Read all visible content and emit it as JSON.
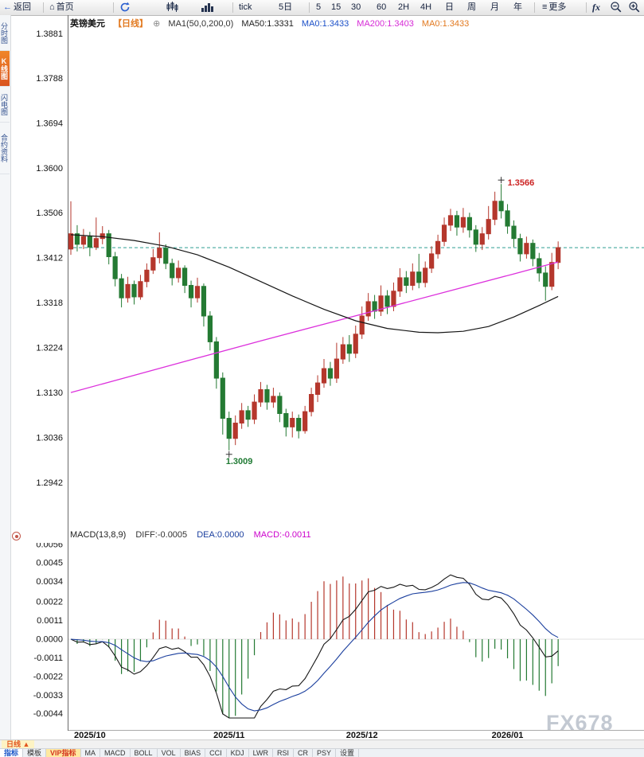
{
  "toolbar": {
    "back": "返回",
    "home": "首页",
    "tick": "tick",
    "five_day": "5日",
    "p5": "5",
    "p15": "15",
    "p30": "30",
    "p60": "60",
    "p2h": "2H",
    "p4h": "4H",
    "pday": "日",
    "pweek": "周",
    "pmonth": "月",
    "pyear": "年",
    "more": "更多",
    "fx": "fx"
  },
  "icons": {
    "back_arrow": "←",
    "home": "⌂",
    "hamburger": "≡",
    "add_circle": "⊕"
  },
  "sidebar": {
    "items": [
      {
        "label": "分时图"
      },
      {
        "label": "K线图"
      },
      {
        "label": "闪电图"
      },
      {
        "label": "合约资料"
      }
    ]
  },
  "price_header": {
    "symbol": "英镑美元",
    "period": "【日线】",
    "ma_params": "MA1(50,0,200,0)",
    "ma50": "MA50:1.3331",
    "ma0_blue": "MA0:1.3433",
    "ma200": "MA200:1.3403",
    "ma0_orange": "MA0:1.3433"
  },
  "macd_header": {
    "params": "MACD(13,8,9)",
    "diff": "DIFF:-0.0005",
    "dea": "DEA:0.0000",
    "macd": "MACD:-0.0011"
  },
  "bottom": {
    "period_tab": "日线 ▲",
    "watermark": "FX678",
    "tabs": [
      {
        "label": "指标"
      },
      {
        "label": "模板"
      },
      {
        "label": "VIP指标"
      },
      {
        "label": "MA"
      },
      {
        "label": "MACD"
      },
      {
        "label": "BOLL"
      },
      {
        "label": "VOL"
      },
      {
        "label": "BIAS"
      },
      {
        "label": "CCI"
      },
      {
        "label": "KDJ"
      },
      {
        "label": "LWR"
      },
      {
        "label": "RSI"
      },
      {
        "label": "CR"
      },
      {
        "label": "PSY"
      },
      {
        "label": "设置"
      }
    ]
  },
  "chart_data": {
    "type": "candlestick",
    "title": "英镑美元 日线",
    "indicator_panel": "MACD",
    "price_axis": {
      "top": 1.3881,
      "bottom": 1.2942,
      "ticks": [
        1.3881,
        1.3788,
        1.3694,
        1.36,
        1.3506,
        1.3412,
        1.3318,
        1.3224,
        1.313,
        1.3036,
        1.2942
      ]
    },
    "last_price_line": 1.3433,
    "x_ticks": [
      {
        "index": 3,
        "label": "2025/10"
      },
      {
        "index": 25,
        "label": "2025/11"
      },
      {
        "index": 46,
        "label": "2025/12"
      },
      {
        "index": 69,
        "label": "2026/01"
      }
    ],
    "candles": [
      [
        1.343,
        1.353,
        1.3418,
        1.3462
      ],
      [
        1.3462,
        1.348,
        1.3425,
        1.344
      ],
      [
        1.344,
        1.3472,
        1.343,
        1.3456
      ],
      [
        1.3456,
        1.3466,
        1.3415,
        1.3434
      ],
      [
        1.3434,
        1.3496,
        1.3428,
        1.3452
      ],
      [
        1.3452,
        1.3478,
        1.344,
        1.3462
      ],
      [
        1.3462,
        1.347,
        1.3398,
        1.3414
      ],
      [
        1.3414,
        1.3424,
        1.3352,
        1.3368
      ],
      [
        1.3368,
        1.3378,
        1.3308,
        1.3328
      ],
      [
        1.3328,
        1.3372,
        1.3318,
        1.3356
      ],
      [
        1.3356,
        1.3364,
        1.3314,
        1.333
      ],
      [
        1.333,
        1.3376,
        1.3324,
        1.3362
      ],
      [
        1.3362,
        1.34,
        1.335,
        1.3386
      ],
      [
        1.3386,
        1.343,
        1.3378,
        1.3412
      ],
      [
        1.3412,
        1.3465,
        1.34,
        1.3432
      ],
      [
        1.3432,
        1.344,
        1.3388,
        1.34
      ],
      [
        1.34,
        1.341,
        1.3354,
        1.337
      ],
      [
        1.337,
        1.3406,
        1.336,
        1.339
      ],
      [
        1.339,
        1.3396,
        1.3338,
        1.3354
      ],
      [
        1.3354,
        1.3364,
        1.3308,
        1.3328
      ],
      [
        1.3328,
        1.337,
        1.3318,
        1.3352
      ],
      [
        1.3352,
        1.3358,
        1.3268,
        1.329
      ],
      [
        1.329,
        1.33,
        1.3218,
        1.3236
      ],
      [
        1.3236,
        1.3246,
        1.3138,
        1.316
      ],
      [
        1.316,
        1.3172,
        1.3042,
        1.3076
      ],
      [
        1.3076,
        1.309,
        1.3009,
        1.3034
      ],
      [
        1.3034,
        1.3082,
        1.302,
        1.3066
      ],
      [
        1.3066,
        1.3108,
        1.3054,
        1.3092
      ],
      [
        1.3092,
        1.3102,
        1.3058,
        1.3074
      ],
      [
        1.3074,
        1.3126,
        1.3064,
        1.311
      ],
      [
        1.311,
        1.3152,
        1.31,
        1.3136
      ],
      [
        1.3136,
        1.3146,
        1.3094,
        1.311
      ],
      [
        1.311,
        1.314,
        1.3098,
        1.3122
      ],
      [
        1.3122,
        1.313,
        1.3068,
        1.3086
      ],
      [
        1.3086,
        1.3096,
        1.3038,
        1.3058
      ],
      [
        1.3058,
        1.309,
        1.3036,
        1.3076
      ],
      [
        1.3076,
        1.3084,
        1.3034,
        1.305
      ],
      [
        1.305,
        1.3102,
        1.3044,
        1.309
      ],
      [
        1.309,
        1.314,
        1.308,
        1.3126
      ],
      [
        1.3126,
        1.3166,
        1.311,
        1.315
      ],
      [
        1.315,
        1.32,
        1.314,
        1.318
      ],
      [
        1.318,
        1.3194,
        1.3144,
        1.316
      ],
      [
        1.316,
        1.3234,
        1.315,
        1.32
      ],
      [
        1.32,
        1.3246,
        1.319,
        1.323
      ],
      [
        1.323,
        1.325,
        1.3194,
        1.3212
      ],
      [
        1.3212,
        1.327,
        1.3202,
        1.3252
      ],
      [
        1.3252,
        1.331,
        1.3242,
        1.329
      ],
      [
        1.329,
        1.3338,
        1.328,
        1.332
      ],
      [
        1.332,
        1.3334,
        1.3284,
        1.33
      ],
      [
        1.33,
        1.3354,
        1.329,
        1.3332
      ],
      [
        1.3332,
        1.3344,
        1.3294,
        1.331
      ],
      [
        1.331,
        1.336,
        1.33,
        1.3342
      ],
      [
        1.3342,
        1.339,
        1.333,
        1.337
      ],
      [
        1.337,
        1.3384,
        1.3338,
        1.3354
      ],
      [
        1.3354,
        1.34,
        1.3344,
        1.3382
      ],
      [
        1.3382,
        1.342,
        1.3348,
        1.336
      ],
      [
        1.336,
        1.3404,
        1.335,
        1.339
      ],
      [
        1.339,
        1.3436,
        1.338,
        1.342
      ],
      [
        1.342,
        1.346,
        1.341,
        1.3446
      ],
      [
        1.3446,
        1.3496,
        1.3436,
        1.348
      ],
      [
        1.348,
        1.3514,
        1.3468,
        1.35
      ],
      [
        1.35,
        1.351,
        1.3458,
        1.3476
      ],
      [
        1.3476,
        1.3516,
        1.3464,
        1.3496
      ],
      [
        1.3496,
        1.3506,
        1.3454,
        1.347
      ],
      [
        1.347,
        1.348,
        1.3424,
        1.344
      ],
      [
        1.344,
        1.3476,
        1.3428,
        1.3462
      ],
      [
        1.3462,
        1.352,
        1.345,
        1.3492
      ],
      [
        1.3492,
        1.355,
        1.348,
        1.353
      ],
      [
        1.353,
        1.3566,
        1.3494,
        1.351
      ],
      [
        1.351,
        1.3524,
        1.3462,
        1.3478
      ],
      [
        1.3478,
        1.349,
        1.3434,
        1.3452
      ],
      [
        1.3452,
        1.3462,
        1.3404,
        1.342
      ],
      [
        1.342,
        1.3456,
        1.341,
        1.3442
      ],
      [
        1.3442,
        1.345,
        1.3394,
        1.341
      ],
      [
        1.341,
        1.3422,
        1.3362,
        1.338
      ],
      [
        1.338,
        1.3394,
        1.3322,
        1.3352
      ],
      [
        1.3352,
        1.3422,
        1.3344,
        1.3402
      ],
      [
        1.3402,
        1.3446,
        1.3388,
        1.3433
      ]
    ],
    "ma50_points": [
      [
        0,
        1.346
      ],
      [
        5,
        1.3456
      ],
      [
        10,
        1.3448
      ],
      [
        15,
        1.3436
      ],
      [
        20,
        1.3418
      ],
      [
        25,
        1.3392
      ],
      [
        30,
        1.3362
      ],
      [
        35,
        1.3332
      ],
      [
        40,
        1.3304
      ],
      [
        45,
        1.328
      ],
      [
        50,
        1.3264
      ],
      [
        55,
        1.3256
      ],
      [
        58,
        1.3255
      ],
      [
        62,
        1.3258
      ],
      [
        66,
        1.3268
      ],
      [
        70,
        1.3288
      ],
      [
        74,
        1.3312
      ],
      [
        77,
        1.3331
      ]
    ],
    "ma200_points": [
      [
        0,
        1.313
      ],
      [
        10,
        1.3166
      ],
      [
        20,
        1.3202
      ],
      [
        30,
        1.3238
      ],
      [
        40,
        1.3273
      ],
      [
        50,
        1.3308
      ],
      [
        60,
        1.3343
      ],
      [
        70,
        1.3378
      ],
      [
        77,
        1.3403
      ]
    ],
    "macd_axis": {
      "ticks": [
        0.0056,
        0.0045,
        0.0034,
        0.0022,
        0.0011,
        0.0,
        -0.0011,
        -0.0022,
        -0.0033,
        -0.0044
      ]
    },
    "macd_params": {
      "fast": 8,
      "slow": 13,
      "signal": 9
    },
    "annotations": [
      {
        "index": 68,
        "price": 1.3566,
        "label": "1.3566",
        "type": "high"
      },
      {
        "index": 25,
        "price": 1.3009,
        "label": "1.3009",
        "type": "low"
      }
    ],
    "colors": {
      "up": "#b5372c",
      "down": "#247a33",
      "ma50": "#161616",
      "ma200": "#dc30dc",
      "dashed": "#2f9e92",
      "diff": "#161616",
      "dea": "#1b3f9e",
      "hist_pos": "#b5372c",
      "hist_neg": "#247a33",
      "annotation_high": "#cc2222",
      "annotation_low": "#1f7a33"
    }
  }
}
